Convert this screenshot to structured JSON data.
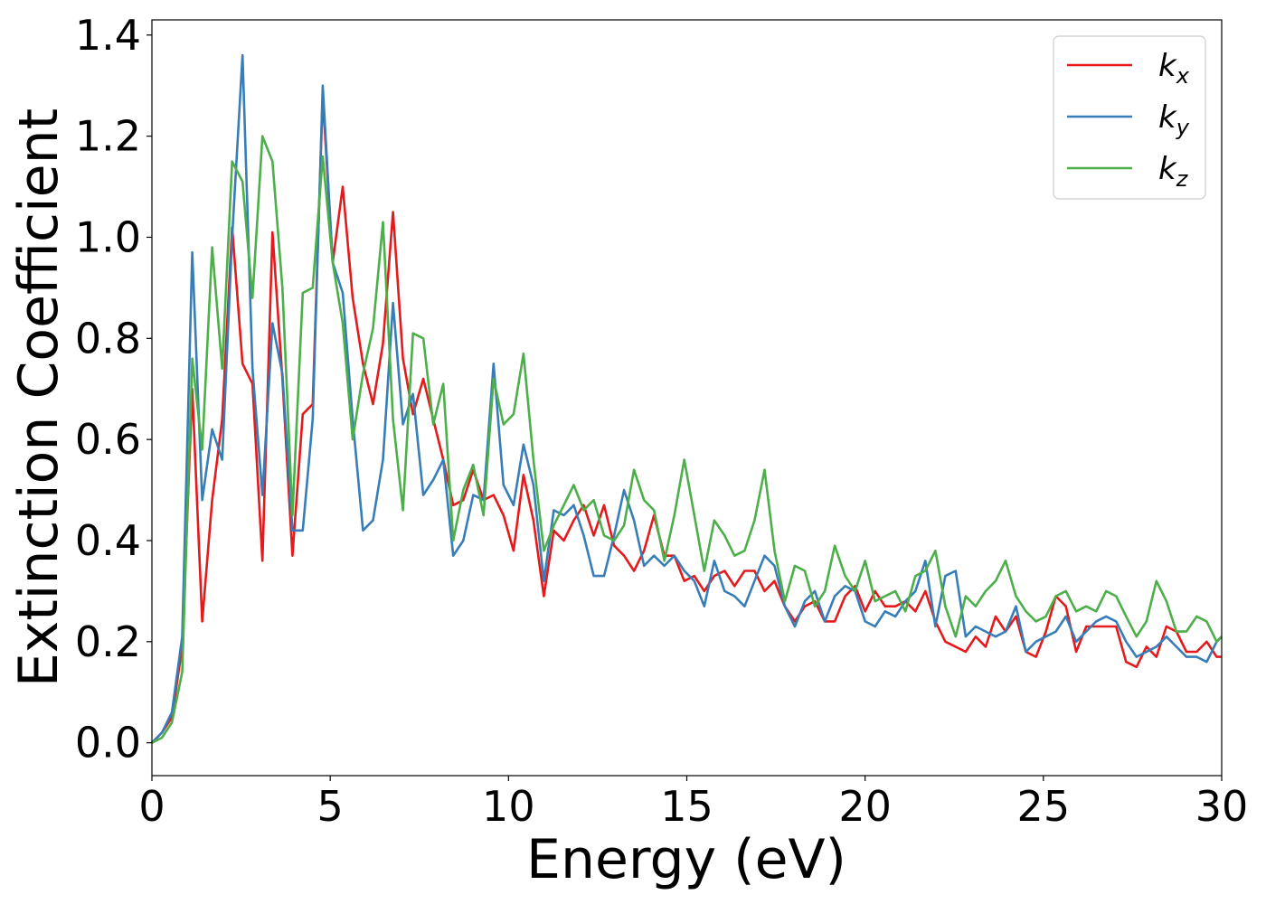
{
  "chart_data": {
    "type": "line",
    "title": "",
    "xlabel": "Energy (eV)",
    "ylabel": "Extinction Coefficient",
    "xlim": [
      0,
      30
    ],
    "ylim": [
      -0.065,
      1.43
    ],
    "xticks": [
      0,
      5,
      10,
      15,
      20,
      25,
      30
    ],
    "xtick_labels": [
      "0",
      "5",
      "10",
      "15",
      "20",
      "25",
      "30"
    ],
    "yticks": [
      0.0,
      0.2,
      0.4,
      0.6,
      0.8,
      1.0,
      1.2,
      1.4
    ],
    "ytick_labels": [
      "0.0",
      "0.2",
      "0.4",
      "0.6",
      "0.8",
      "1.0",
      "1.2",
      "1.4"
    ],
    "grid": false,
    "legend_position": "top-right",
    "x": [
      0.0,
      0.28,
      0.56,
      0.85,
      1.13,
      1.41,
      1.69,
      1.97,
      2.25,
      2.54,
      2.82,
      3.1,
      3.38,
      3.66,
      3.94,
      4.23,
      4.51,
      4.79,
      5.07,
      5.35,
      5.63,
      5.92,
      6.2,
      6.48,
      6.76,
      7.04,
      7.32,
      7.61,
      7.89,
      8.17,
      8.45,
      8.73,
      9.01,
      9.3,
      9.58,
      9.86,
      10.14,
      10.42,
      10.7,
      10.99,
      11.27,
      11.55,
      11.83,
      12.11,
      12.39,
      12.68,
      12.96,
      13.24,
      13.52,
      13.8,
      14.08,
      14.37,
      14.65,
      14.93,
      15.21,
      15.49,
      15.77,
      16.06,
      16.34,
      16.62,
      16.9,
      17.18,
      17.46,
      17.75,
      18.03,
      18.31,
      18.59,
      18.87,
      19.15,
      19.44,
      19.72,
      20.0,
      20.28,
      20.56,
      20.85,
      21.13,
      21.41,
      21.69,
      21.97,
      22.25,
      22.54,
      22.82,
      23.1,
      23.38,
      23.66,
      23.94,
      24.23,
      24.51,
      24.79,
      25.07,
      25.35,
      25.63,
      25.92,
      26.2,
      26.48,
      26.76,
      27.04,
      27.32,
      27.61,
      27.89,
      28.17,
      28.45,
      28.73,
      29.01,
      29.3,
      29.58,
      29.86,
      30.0
    ],
    "series": [
      {
        "name": "k",
        "subscript": "x",
        "color": "#e41a1c",
        "values": [
          0.0,
          0.02,
          0.05,
          0.19,
          0.7,
          0.24,
          0.48,
          0.64,
          1.02,
          0.75,
          0.71,
          0.36,
          1.01,
          0.72,
          0.37,
          0.65,
          0.67,
          1.28,
          0.95,
          1.1,
          0.88,
          0.75,
          0.67,
          0.79,
          1.05,
          0.76,
          0.65,
          0.72,
          0.64,
          0.56,
          0.47,
          0.48,
          0.54,
          0.48,
          0.49,
          0.45,
          0.38,
          0.53,
          0.44,
          0.29,
          0.42,
          0.4,
          0.44,
          0.47,
          0.41,
          0.47,
          0.39,
          0.37,
          0.34,
          0.38,
          0.45,
          0.37,
          0.37,
          0.32,
          0.33,
          0.3,
          0.33,
          0.34,
          0.31,
          0.34,
          0.34,
          0.3,
          0.32,
          0.27,
          0.24,
          0.27,
          0.28,
          0.24,
          0.24,
          0.29,
          0.31,
          0.26,
          0.3,
          0.27,
          0.27,
          0.28,
          0.26,
          0.3,
          0.24,
          0.2,
          0.19,
          0.18,
          0.21,
          0.19,
          0.25,
          0.22,
          0.25,
          0.18,
          0.17,
          0.22,
          0.29,
          0.27,
          0.18,
          0.23,
          0.23,
          0.23,
          0.23,
          0.16,
          0.15,
          0.19,
          0.17,
          0.23,
          0.22,
          0.18,
          0.18,
          0.2,
          0.17,
          0.17
        ]
      },
      {
        "name": "k",
        "subscript": "y",
        "color": "#377eb8",
        "values": [
          0.0,
          0.02,
          0.06,
          0.21,
          0.97,
          0.48,
          0.62,
          0.56,
          1.0,
          1.36,
          0.74,
          0.49,
          0.83,
          0.73,
          0.42,
          0.42,
          0.64,
          1.3,
          0.95,
          0.89,
          0.64,
          0.42,
          0.44,
          0.56,
          0.87,
          0.63,
          0.69,
          0.49,
          0.52,
          0.56,
          0.37,
          0.4,
          0.49,
          0.48,
          0.75,
          0.51,
          0.47,
          0.59,
          0.51,
          0.32,
          0.46,
          0.45,
          0.47,
          0.41,
          0.33,
          0.33,
          0.41,
          0.5,
          0.44,
          0.35,
          0.37,
          0.35,
          0.37,
          0.34,
          0.32,
          0.27,
          0.36,
          0.3,
          0.29,
          0.27,
          0.32,
          0.37,
          0.35,
          0.27,
          0.23,
          0.28,
          0.3,
          0.24,
          0.29,
          0.31,
          0.3,
          0.24,
          0.23,
          0.26,
          0.25,
          0.28,
          0.3,
          0.36,
          0.23,
          0.33,
          0.34,
          0.21,
          0.23,
          0.22,
          0.21,
          0.22,
          0.27,
          0.18,
          0.2,
          0.21,
          0.22,
          0.25,
          0.2,
          0.22,
          0.24,
          0.25,
          0.24,
          0.2,
          0.17,
          0.18,
          0.19,
          0.21,
          0.19,
          0.17,
          0.17,
          0.16,
          0.2,
          0.21
        ]
      },
      {
        "name": "k",
        "subscript": "z",
        "color": "#4daf4a",
        "values": [
          0.0,
          0.01,
          0.04,
          0.14,
          0.76,
          0.58,
          0.98,
          0.74,
          1.15,
          1.11,
          0.88,
          1.2,
          1.15,
          0.9,
          0.45,
          0.89,
          0.9,
          1.16,
          0.95,
          0.83,
          0.6,
          0.73,
          0.82,
          1.03,
          0.64,
          0.46,
          0.81,
          0.8,
          0.63,
          0.71,
          0.4,
          0.5,
          0.55,
          0.45,
          0.72,
          0.63,
          0.65,
          0.77,
          0.56,
          0.38,
          0.43,
          0.47,
          0.51,
          0.46,
          0.48,
          0.41,
          0.4,
          0.43,
          0.54,
          0.48,
          0.46,
          0.36,
          0.45,
          0.56,
          0.45,
          0.34,
          0.44,
          0.41,
          0.37,
          0.38,
          0.44,
          0.54,
          0.38,
          0.28,
          0.35,
          0.34,
          0.27,
          0.3,
          0.39,
          0.33,
          0.3,
          0.36,
          0.28,
          0.29,
          0.3,
          0.26,
          0.33,
          0.34,
          0.38,
          0.27,
          0.21,
          0.29,
          0.27,
          0.3,
          0.32,
          0.36,
          0.29,
          0.26,
          0.24,
          0.25,
          0.29,
          0.3,
          0.26,
          0.27,
          0.26,
          0.3,
          0.29,
          0.25,
          0.21,
          0.24,
          0.32,
          0.28,
          0.22,
          0.22,
          0.25,
          0.24,
          0.2,
          0.21
        ]
      }
    ]
  }
}
